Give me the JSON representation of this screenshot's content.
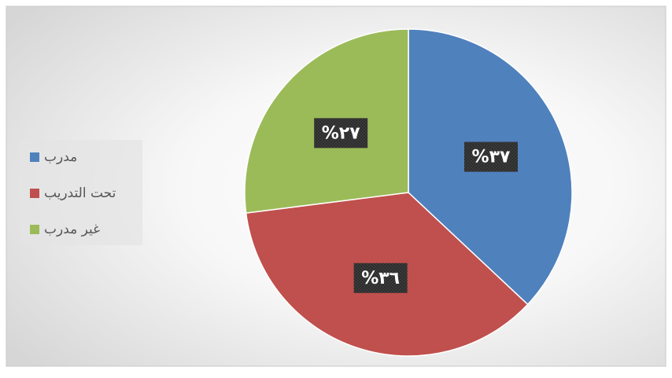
{
  "chart_data": {
    "type": "pie",
    "categories": [
      "مدرب",
      "تحت التدريب",
      "غير مدرب"
    ],
    "values": [
      37,
      36,
      27
    ],
    "value_labels": [
      "%٣٧",
      "%٣٦",
      "%٢٧"
    ],
    "colors": [
      "#4f81bd",
      "#c0504d",
      "#9bbb59"
    ],
    "legend": "left"
  }
}
